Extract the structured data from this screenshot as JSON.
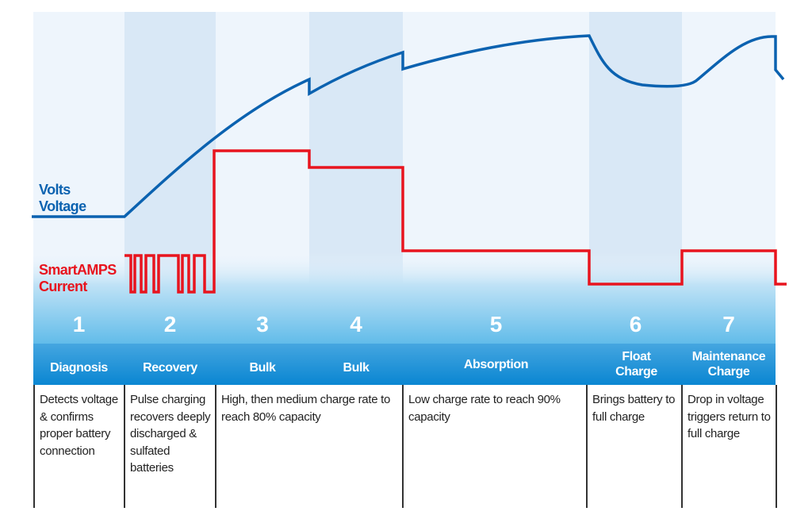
{
  "labels": {
    "voltage_line1": "Volts",
    "voltage_line2": "Voltage",
    "current_line1": "SmartAMPS",
    "current_line2": "Current"
  },
  "colors": {
    "voltage": "#0b62b0",
    "current": "#e8141e",
    "header": "#1a8fd6"
  },
  "stages": [
    {
      "number": "1",
      "name": "Diagnosis",
      "description": "Detects voltage & confirms proper battery connection"
    },
    {
      "number": "2",
      "name": "Recovery",
      "description": "Pulse charging recovers deeply discharged & sulfated batteries"
    },
    {
      "number": "3",
      "name": "Bulk"
    },
    {
      "number": "4",
      "name": "Bulk"
    },
    {
      "number": "5",
      "name": "Absorption",
      "description": "Low charge rate to reach 90% capacity"
    },
    {
      "number": "6",
      "name": "Float Charge",
      "description": "Brings battery to full charge"
    },
    {
      "number": "7",
      "name": "Maintenance Charge",
      "description": "Drop in voltage triggers return to full charge"
    }
  ],
  "bulk_description": "High, then medium charge rate to reach 80% capacity"
}
